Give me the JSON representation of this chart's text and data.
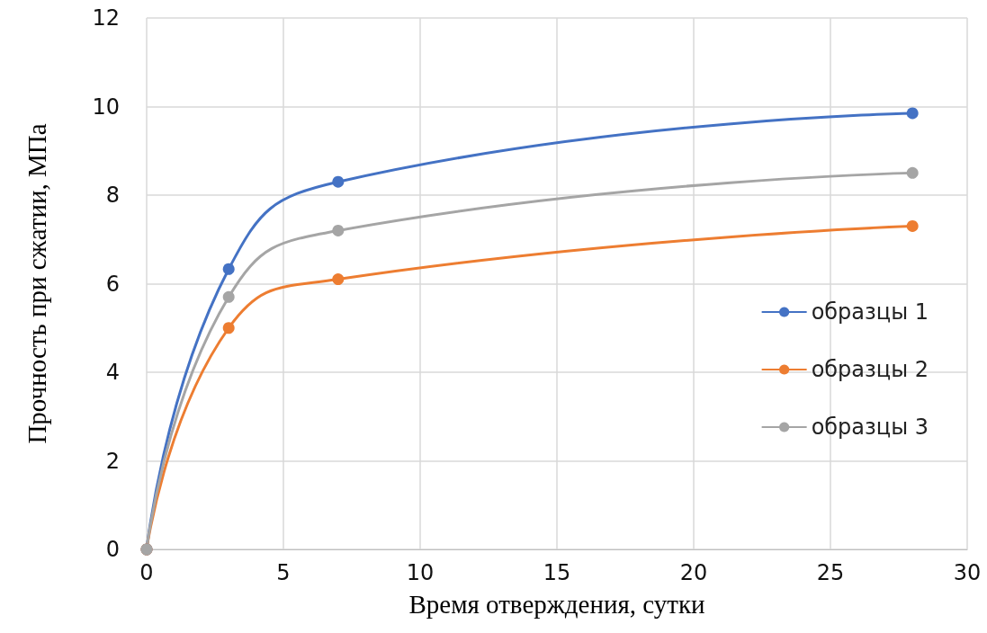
{
  "chart_data": {
    "type": "line",
    "xlabel": "Время отверждения, сутки",
    "ylabel": "Прочность при сжатии, МПа",
    "x": [
      0,
      3,
      7,
      28
    ],
    "series": [
      {
        "name": "образцы 1",
        "color": "#4472c4",
        "values": [
          0,
          6.33,
          8.3,
          9.85
        ]
      },
      {
        "name": "образцы 2",
        "color": "#ed7d31",
        "values": [
          0,
          5.0,
          6.1,
          7.3
        ]
      },
      {
        "name": "образцы 3",
        "color": "#a5a5a5",
        "values": [
          0,
          5.7,
          7.2,
          8.5
        ]
      }
    ],
    "xlim": [
      0,
      30
    ],
    "xticks": [
      0,
      5,
      10,
      15,
      20,
      25,
      30
    ],
    "ylim": [
      0,
      12
    ],
    "yticks": [
      0,
      2,
      4,
      6,
      8,
      10,
      12
    ],
    "grid": true,
    "legend": "right",
    "marker": "circle",
    "line_style": "solid"
  }
}
